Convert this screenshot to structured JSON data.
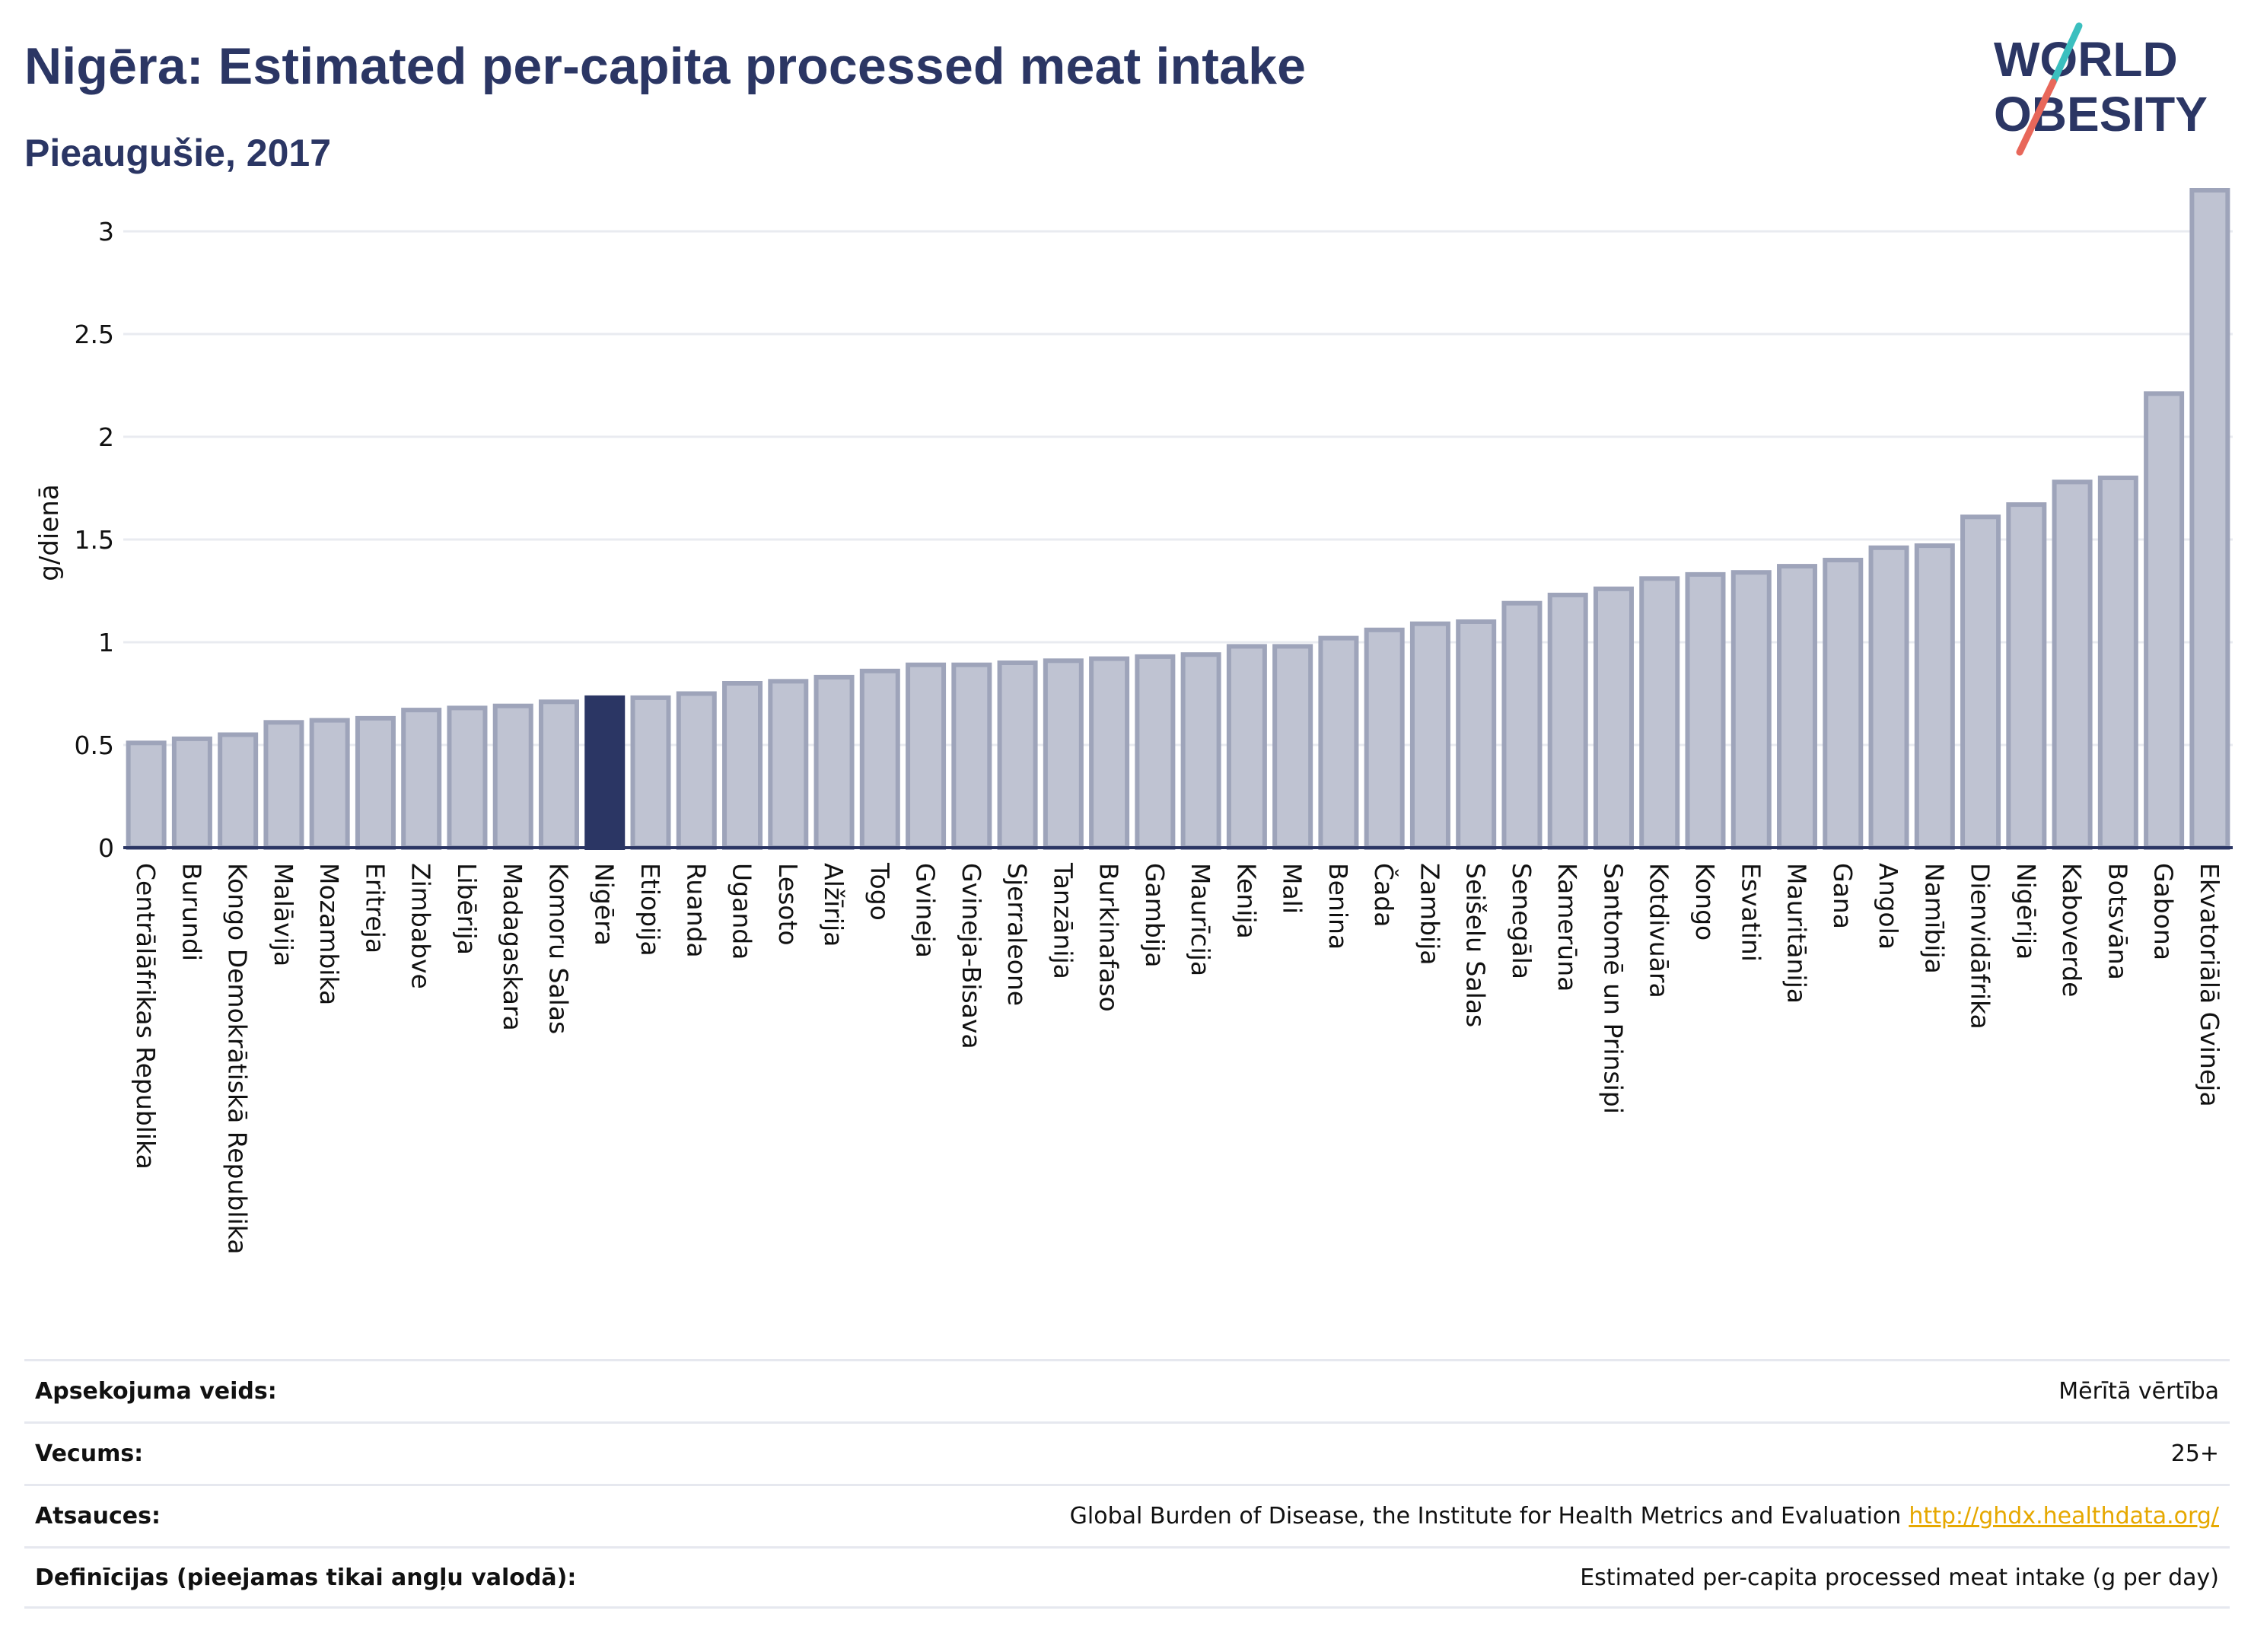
{
  "header": {
    "title": "Nigēra: Estimated per-capita processed meat intake",
    "subtitle": "Pieaugušie, 2017"
  },
  "logo": {
    "line1": "WORLD",
    "line2": "OBESITY",
    "colors": {
      "text": "#2b3664",
      "slash_top": "#3bbfbf",
      "slash_bottom": "#e8675a"
    }
  },
  "chart_data": {
    "type": "bar",
    "ylabel": "g/dienā",
    "xlabel": "",
    "ylim": [
      0,
      3.2
    ],
    "yticks": [
      0,
      0.5,
      1,
      1.5,
      2,
      2.5,
      3
    ],
    "ytick_labels": [
      "0",
      "0.5",
      "1",
      "1.5",
      "2",
      "2.5",
      "3"
    ],
    "grid": true,
    "highlight": "Nigēra",
    "colors": {
      "bar": "#bfc3d2",
      "bar_edge": "#9ea4ba",
      "highlight": "#2b3664",
      "grid": "#e9ebf0",
      "axis": "#2b3664"
    },
    "categories": [
      "Centrālāfrikas Republika",
      "Burundi",
      "Kongo Demokrātiskā Republika",
      "Malāvija",
      "Mozambika",
      "Eritreja",
      "Zimbabve",
      "Libērija",
      "Madagaskara",
      "Komoru Salas",
      "Nigēra",
      "Etiopija",
      "Ruanda",
      "Uganda",
      "Lesoto",
      "Alžīrija",
      "Togo",
      "Gvineja",
      "Gvineja-Bisava",
      "Sjerraleone",
      "Tanzānija",
      "Burkinafaso",
      "Gambija",
      "Maurīcija",
      "Kenija",
      "Mali",
      "Benina",
      "Čada",
      "Zambija",
      "Seišelu Salas",
      "Senegāla",
      "Kamerūna",
      "Santomē un Prinsipi",
      "Kotdivuāra",
      "Kongo",
      "Esvatini",
      "Mauritānija",
      "Gana",
      "Angola",
      "Namībija",
      "Dienvidāfrika",
      "Nigērija",
      "Kaboverde",
      "Botsvāna",
      "Gabona",
      "Ekvatoriālā Gvineja"
    ],
    "values": [
      0.51,
      0.53,
      0.55,
      0.61,
      0.62,
      0.63,
      0.67,
      0.68,
      0.69,
      0.71,
      0.73,
      0.73,
      0.75,
      0.8,
      0.81,
      0.83,
      0.86,
      0.89,
      0.89,
      0.9,
      0.91,
      0.92,
      0.93,
      0.94,
      0.98,
      0.98,
      1.02,
      1.06,
      1.09,
      1.1,
      1.19,
      1.23,
      1.26,
      1.31,
      1.33,
      1.34,
      1.37,
      1.4,
      1.46,
      1.47,
      1.61,
      1.67,
      1.78,
      1.8,
      2.21,
      3.2
    ]
  },
  "meta": [
    {
      "label": "Apsekojuma veids:",
      "value": "Mērītā vērtība",
      "link": ""
    },
    {
      "label": "Vecums:",
      "value": "25+",
      "link": ""
    },
    {
      "label": "Atsauces:",
      "value": "Global Burden of Disease, the Institute for Health Metrics and Evaluation",
      "link": "http://ghdx.healthdata.org/"
    },
    {
      "label": "Definīcijas (pieejamas tikai angļu valodā):",
      "value": "Estimated per-capita processed meat intake (g per day)",
      "link": ""
    }
  ]
}
